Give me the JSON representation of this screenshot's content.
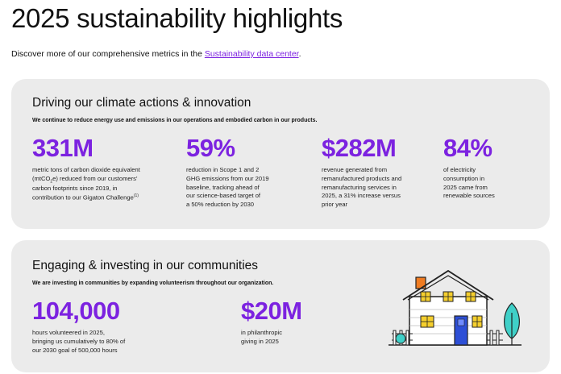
{
  "header": {
    "title": "2025 sustainability highlights",
    "intro_prefix": "Discover more of our comprehensive metrics in the ",
    "intro_link": "Sustainability data center",
    "intro_suffix": "."
  },
  "climate": {
    "title": "Driving our climate actions & innovation",
    "subtitle": "We continue to reduce energy use and emissions in our operations and embodied carbon in our products.",
    "stats": [
      {
        "value": "331M",
        "desc_html": "metric tons of carbon dioxide equivalent<br>(mtCO<sub>2</sub>e) reduced from our customers'<br>carbon footprints since 2019, in<br>contribution to our Gigaton Challenge<sup>(1)</sup>"
      },
      {
        "value": "59%",
        "desc_html": "reduction in Scope 1 and 2<br>GHG emissions from our 2019<br>baseline, tracking ahead of<br>our science-based target of<br>a 50% reduction by 2030"
      },
      {
        "value": "$282M",
        "desc_html": "revenue generated from<br>remanufactured products and<br>remanufacturing services in<br>2025, a 31% increase versus<br>prior year"
      },
      {
        "value": "84%",
        "desc_html": "of electricity<br>consumption in<br>2025 came from<br>renewable sources"
      }
    ]
  },
  "communities": {
    "title": "Engaging & investing in our communities",
    "subtitle": "We are investing in communities by expanding volunteerism throughout our organization.",
    "stats": [
      {
        "value": "104,000",
        "desc_html": "hours volunteered in 2025,<br>bringing us cumulatively to 80% of<br>our 2030 goal of 500,000 hours"
      },
      {
        "value": "$20M",
        "desc_html": "in philanthropic<br>giving in 2025"
      }
    ]
  },
  "colors": {
    "accent": "#7c22e0",
    "card_bg": "#ebebeb",
    "window_yellow": "#f5cf2e",
    "door_blue": "#2d4fd6",
    "chimney_orange": "#f07c22",
    "tree_teal": "#3fd0c8"
  }
}
